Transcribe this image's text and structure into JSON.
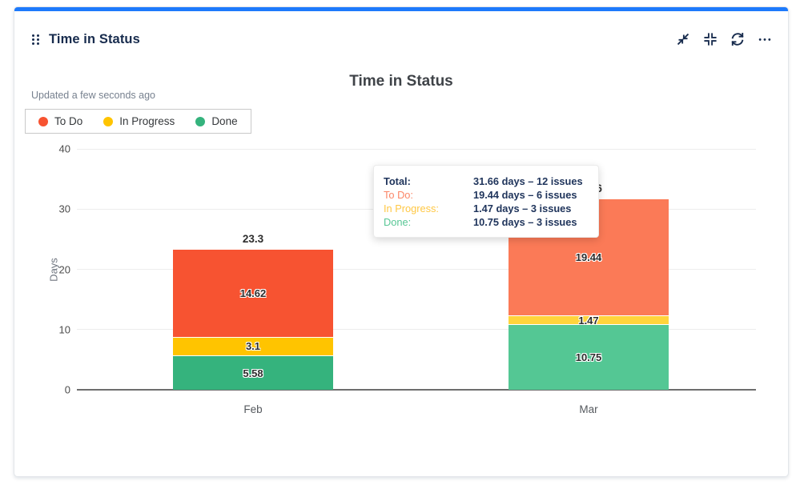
{
  "card": {
    "title": "Time in Status",
    "accent_color": "#1d7afc",
    "drag_handle_icon": "drag-handle-icon",
    "toolbar": {
      "icons": [
        "minimize-icon",
        "collapse-corners-icon",
        "refresh-icon",
        "more-options-icon"
      ]
    }
  },
  "chart": {
    "title": "Time in Status",
    "updated_text": "Updated a few seconds ago",
    "ylabel": "Days",
    "yticks": [
      0,
      10,
      20,
      30,
      40
    ],
    "legend": [
      {
        "label": "To Do",
        "color": "#f75331"
      },
      {
        "label": "In Progress",
        "color": "#ffc400"
      },
      {
        "label": "Done",
        "color": "#35b37d"
      }
    ]
  },
  "chart_data": {
    "type": "bar",
    "stacked": true,
    "categories": [
      "Feb",
      "Mar"
    ],
    "series": [
      {
        "name": "To Do",
        "values": [
          14.62,
          19.44
        ],
        "color": "#f75331",
        "hover_color": "#fb7a57"
      },
      {
        "name": "In Progress",
        "values": [
          3.1,
          1.47
        ],
        "color": "#ffc400",
        "hover_color": "#ffd43c"
      },
      {
        "name": "Done",
        "values": [
          5.58,
          10.75
        ],
        "color": "#35b37d",
        "hover_color": "#54c794"
      }
    ],
    "totals": [
      23.3,
      31.66
    ],
    "hovered_category": "Mar",
    "title": "Time in Status",
    "xlabel": "",
    "ylabel": "Days",
    "ylim": [
      0,
      40
    ],
    "grid": true,
    "legend_position": "top-left"
  },
  "tooltip": {
    "rows": [
      {
        "label": "Total:",
        "value": "31.66 days – 12 issues",
        "label_color": "#20355c",
        "label_bold": true
      },
      {
        "label": "To Do:",
        "value": "19.44 days – 6 issues",
        "label_color": "#fb8667",
        "label_bold": false
      },
      {
        "label": "In Progress:",
        "value": "1.47 days – 3 issues",
        "label_color": "#ffc845",
        "label_bold": false
      },
      {
        "label": "Done:",
        "value": "10.75 days – 3 issues",
        "label_color": "#58c795",
        "label_bold": false
      }
    ],
    "value_color": "#20355c"
  }
}
